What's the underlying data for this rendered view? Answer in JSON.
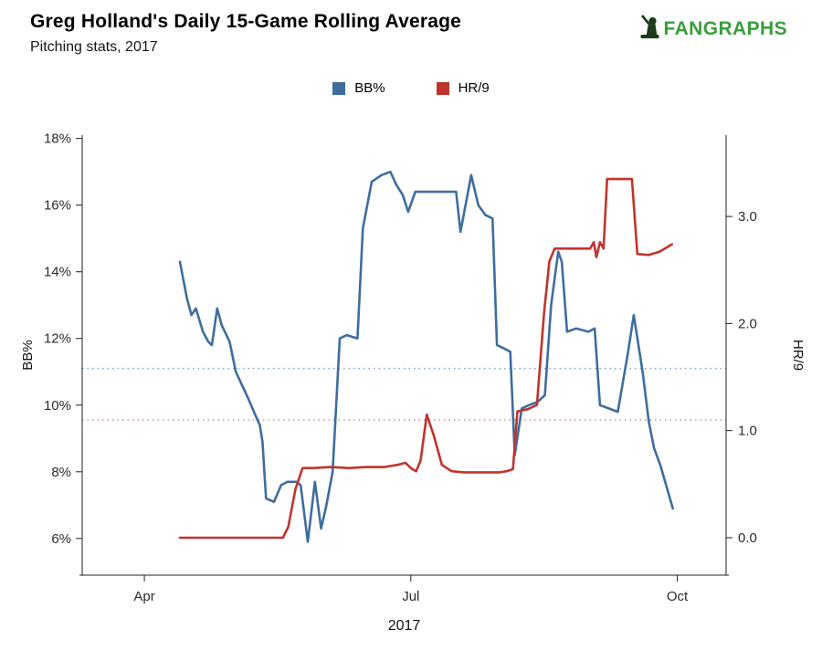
{
  "header": {
    "title": "Greg Holland's Daily 15-Game Rolling Average",
    "subtitle": "Pitching stats, 2017"
  },
  "brand": {
    "name": "FANGRAPHS",
    "color": "#3a9e3c",
    "icon_color": "#1d3a1d"
  },
  "legend": {
    "items": [
      {
        "label": "BB%",
        "color": "#3f6d9e"
      },
      {
        "label": "HR/9",
        "color": "#c0342e"
      }
    ]
  },
  "chart_data": {
    "type": "line",
    "title": "Greg Holland's Daily 15-Game Rolling Average",
    "subtitle": "Pitching stats, 2017",
    "xlabel": "2017",
    "x_unit": "month-of-2017 (numeric, Apr=4, Jul=7, Oct=10)",
    "x_range": [
      3.3,
      10.55
    ],
    "x_ticks": [
      {
        "value": 4,
        "label": "Apr"
      },
      {
        "value": 7,
        "label": "Jul"
      },
      {
        "value": 10,
        "label": "Oct"
      }
    ],
    "grid": false,
    "legend_position": "top-center",
    "left_axis": {
      "label": "BB%",
      "range": [
        4.9,
        18.1
      ],
      "ticks": [
        {
          "value": 6,
          "label": "6%"
        },
        {
          "value": 8,
          "label": "8%"
        },
        {
          "value": 10,
          "label": "10%"
        },
        {
          "value": 12,
          "label": "12%"
        },
        {
          "value": 14,
          "label": "14%"
        },
        {
          "value": 16,
          "label": "16%"
        },
        {
          "value": 18,
          "label": "18%"
        }
      ]
    },
    "right_axis": {
      "label": "HR/9",
      "range": [
        -0.35,
        3.76
      ],
      "ticks": [
        {
          "value": 0,
          "label": "0.0"
        },
        {
          "value": 1,
          "label": "1.0"
        },
        {
          "value": 2,
          "label": "2.0"
        },
        {
          "value": 3,
          "label": "3.0"
        }
      ]
    },
    "reference_lines": [
      {
        "name": "bb-average-line",
        "axis": "left",
        "value": 11.1,
        "color": "#7a9cc4",
        "style": "dotted"
      },
      {
        "name": "hr9-average-line",
        "axis": "right",
        "value": 1.1,
        "color": "#d4837d",
        "style": "dotted"
      }
    ],
    "series": [
      {
        "name": "BB%",
        "axis": "left",
        "color": "#3f6d9e",
        "points": [
          [
            4.4,
            14.3
          ],
          [
            4.48,
            13.2
          ],
          [
            4.53,
            12.7
          ],
          [
            4.58,
            12.9
          ],
          [
            4.66,
            12.2
          ],
          [
            4.72,
            11.9
          ],
          [
            4.76,
            11.8
          ],
          [
            4.82,
            12.9
          ],
          [
            4.87,
            12.4
          ],
          [
            4.96,
            11.9
          ],
          [
            5.03,
            11.0
          ],
          [
            5.1,
            10.6
          ],
          [
            5.17,
            10.2
          ],
          [
            5.25,
            9.7
          ],
          [
            5.3,
            9.4
          ],
          [
            5.33,
            8.9
          ],
          [
            5.37,
            7.2
          ],
          [
            5.46,
            7.1
          ],
          [
            5.54,
            7.6
          ],
          [
            5.61,
            7.7
          ],
          [
            5.71,
            7.7
          ],
          [
            5.76,
            7.6
          ],
          [
            5.84,
            5.9
          ],
          [
            5.92,
            7.7
          ],
          [
            5.99,
            6.3
          ],
          [
            6.05,
            7.0
          ],
          [
            6.12,
            8.0
          ],
          [
            6.2,
            12.0
          ],
          [
            6.28,
            12.1
          ],
          [
            6.4,
            12.0
          ],
          [
            6.46,
            15.3
          ],
          [
            6.51,
            16.0
          ],
          [
            6.56,
            16.7
          ],
          [
            6.67,
            16.9
          ],
          [
            6.77,
            17.0
          ],
          [
            6.84,
            16.6
          ],
          [
            6.91,
            16.3
          ],
          [
            6.97,
            15.8
          ],
          [
            7.05,
            16.4
          ],
          [
            7.2,
            16.4
          ],
          [
            7.35,
            16.4
          ],
          [
            7.51,
            16.4
          ],
          [
            7.56,
            15.2
          ],
          [
            7.68,
            16.9
          ],
          [
            7.76,
            16.0
          ],
          [
            7.84,
            15.7
          ],
          [
            7.92,
            15.6
          ],
          [
            7.97,
            11.8
          ],
          [
            8.05,
            11.7
          ],
          [
            8.12,
            11.6
          ],
          [
            8.17,
            8.5
          ],
          [
            8.25,
            9.9
          ],
          [
            8.33,
            10.0
          ],
          [
            8.43,
            10.1
          ],
          [
            8.51,
            10.3
          ],
          [
            8.58,
            13.0
          ],
          [
            8.66,
            14.6
          ],
          [
            8.7,
            14.3
          ],
          [
            8.76,
            12.2
          ],
          [
            8.86,
            12.3
          ],
          [
            9.0,
            12.2
          ],
          [
            9.07,
            12.3
          ],
          [
            9.13,
            10.0
          ],
          [
            9.23,
            9.9
          ],
          [
            9.33,
            9.8
          ],
          [
            9.44,
            11.5
          ],
          [
            9.51,
            12.7
          ],
          [
            9.61,
            11.0
          ],
          [
            9.68,
            9.5
          ],
          [
            9.74,
            8.7
          ],
          [
            9.81,
            8.2
          ],
          [
            9.95,
            6.9
          ]
        ]
      },
      {
        "name": "HR/9",
        "axis": "right",
        "color": "#c0342e",
        "points": [
          [
            4.4,
            0.0
          ],
          [
            5.0,
            0.0
          ],
          [
            5.4,
            0.0
          ],
          [
            5.56,
            0.0
          ],
          [
            5.62,
            0.1
          ],
          [
            5.7,
            0.45
          ],
          [
            5.78,
            0.65
          ],
          [
            5.9,
            0.65
          ],
          [
            6.1,
            0.66
          ],
          [
            6.3,
            0.65
          ],
          [
            6.5,
            0.66
          ],
          [
            6.7,
            0.66
          ],
          [
            6.85,
            0.68
          ],
          [
            6.94,
            0.7
          ],
          [
            7.0,
            0.65
          ],
          [
            7.06,
            0.62
          ],
          [
            7.11,
            0.72
          ],
          [
            7.18,
            1.15
          ],
          [
            7.26,
            0.95
          ],
          [
            7.35,
            0.68
          ],
          [
            7.46,
            0.62
          ],
          [
            7.6,
            0.61
          ],
          [
            7.8,
            0.61
          ],
          [
            8.0,
            0.61
          ],
          [
            8.08,
            0.62
          ],
          [
            8.15,
            0.64
          ],
          [
            8.2,
            1.18
          ],
          [
            8.32,
            1.2
          ],
          [
            8.42,
            1.24
          ],
          [
            8.5,
            2.1
          ],
          [
            8.56,
            2.58
          ],
          [
            8.62,
            2.7
          ],
          [
            8.75,
            2.7
          ],
          [
            8.9,
            2.7
          ],
          [
            9.02,
            2.7
          ],
          [
            9.06,
            2.76
          ],
          [
            9.09,
            2.62
          ],
          [
            9.13,
            2.76
          ],
          [
            9.17,
            2.7
          ],
          [
            9.21,
            3.35
          ],
          [
            9.35,
            3.35
          ],
          [
            9.49,
            3.35
          ],
          [
            9.55,
            2.65
          ],
          [
            9.68,
            2.64
          ],
          [
            9.8,
            2.67
          ],
          [
            9.94,
            2.74
          ]
        ]
      }
    ]
  }
}
